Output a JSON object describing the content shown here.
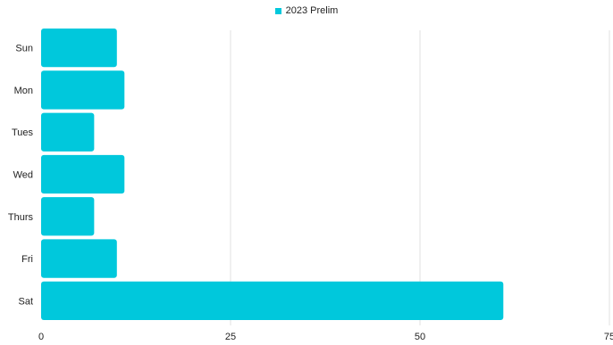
{
  "chart_data": {
    "type": "bar",
    "orientation": "horizontal",
    "categories": [
      "Sun",
      "Mon",
      "Tues",
      "Wed",
      "Thurs",
      "Fri",
      "Sat"
    ],
    "series": [
      {
        "name": "2023 Prelim",
        "values": [
          10,
          11,
          7,
          11,
          7,
          10,
          61
        ],
        "color": "#00C8DC"
      }
    ],
    "xlim": [
      0,
      75
    ],
    "xticks": [
      0,
      25,
      50,
      75
    ],
    "grid": true,
    "legend_position": "top-center"
  },
  "colors": {
    "bar": "#00C8DC",
    "grid": "#e2e2e2",
    "text": "#222222"
  }
}
